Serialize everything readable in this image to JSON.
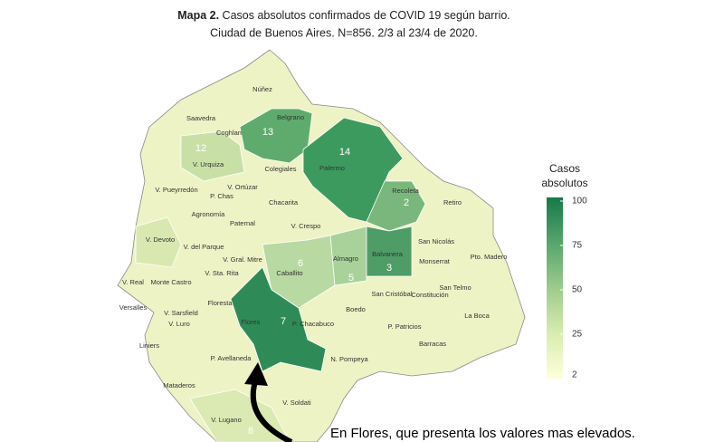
{
  "title_bold": "Mapa 2.",
  "title": "Casos absolutos confirmados de COVID 19 según barrio.",
  "subtitle": "Ciudad de Buenos Aires. N=856. 2/3 al 23/4 de 2020.",
  "legend": {
    "title": [
      "Casos",
      "absolutos"
    ],
    "range": [
      2,
      100
    ],
    "ticks": [
      100,
      75,
      50,
      25,
      2
    ],
    "colors": [
      "#ffffd8",
      "#d9ecb0",
      "#9ccb8c",
      "#57a56b",
      "#17794a"
    ]
  },
  "neighborhoods": [
    {
      "name": "Núñez"
    },
    {
      "name": "Saavedra"
    },
    {
      "name": "Coghlan"
    },
    {
      "name": "Belgrano",
      "count": 13,
      "color": "#5fab6e"
    },
    {
      "name": "Palermo",
      "count": 14,
      "color": "#3d9a5f"
    },
    {
      "name": "V. Urquiza",
      "count": 12,
      "color": "#c8e0a6"
    },
    {
      "name": "Colegiales"
    },
    {
      "name": "V. Pueyrredón"
    },
    {
      "name": "V. Ortúzar"
    },
    {
      "name": "P. Chas"
    },
    {
      "name": "Chacarita"
    },
    {
      "name": "Recoleta",
      "count": 2,
      "color": "#79b77c"
    },
    {
      "name": "Retiro"
    },
    {
      "name": "Agronomía"
    },
    {
      "name": "Paternal"
    },
    {
      "name": "V. Crespo"
    },
    {
      "name": "V. Devoto",
      "color": "#d9e8b0"
    },
    {
      "name": "V. del Parque"
    },
    {
      "name": "V. Gral. Mitre"
    },
    {
      "name": "Caballito",
      "count": 6,
      "color": "#b8d9a2"
    },
    {
      "name": "Almagro",
      "count": 5,
      "color": "#a9d29a"
    },
    {
      "name": "Balvanera",
      "count": 3,
      "color": "#4e9d67"
    },
    {
      "name": "San Nicolás"
    },
    {
      "name": "Monserrat"
    },
    {
      "name": "Pto. Madero"
    },
    {
      "name": "V. Sta. Rita"
    },
    {
      "name": "Monte Castro"
    },
    {
      "name": "V. Real"
    },
    {
      "name": "Floresta"
    },
    {
      "name": "Versalles"
    },
    {
      "name": "V. Sarsfield"
    },
    {
      "name": "V. Luro"
    },
    {
      "name": "San Cristóbal"
    },
    {
      "name": "Constitución"
    },
    {
      "name": "San Telmo"
    },
    {
      "name": "Flores",
      "count": 7,
      "color": "#2e8b57"
    },
    {
      "name": "P. Chacabuco"
    },
    {
      "name": "Boedo"
    },
    {
      "name": "P. Patricios"
    },
    {
      "name": "La Boca"
    },
    {
      "name": "Liniers"
    },
    {
      "name": "Barracas"
    },
    {
      "name": "P. Avellaneda"
    },
    {
      "name": "N. Pompeya"
    },
    {
      "name": "Mataderos"
    },
    {
      "name": "V. Soldati"
    },
    {
      "name": "V. Lugano",
      "count": 8,
      "color": "#dbe9b2"
    }
  ],
  "caption": "En Flores, que presenta los valores mas elevados."
}
